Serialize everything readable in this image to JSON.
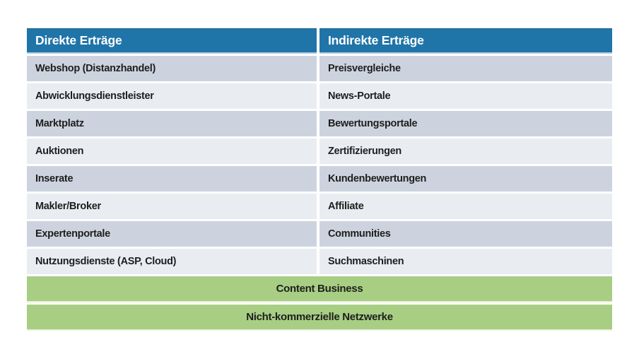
{
  "table": {
    "headers": [
      "Direkte Erträge",
      "Indirekte Erträge"
    ],
    "rows": [
      [
        "Webshop (Distanzhandel)",
        "Preisvergleiche"
      ],
      [
        "Abwicklungsdienstleister",
        "News-Portale"
      ],
      [
        "Marktplatz",
        "Bewertungsportale"
      ],
      [
        "Auktionen",
        "Zertifizierungen"
      ],
      [
        "Inserate",
        "Kundenbewertungen"
      ],
      [
        "Makler/Broker",
        "Affiliate"
      ],
      [
        "Expertenportale",
        "Communities"
      ],
      [
        "Nutzungsdienste (ASP, Cloud)",
        "Suchmaschinen"
      ]
    ],
    "span_rows": [
      "Content Business",
      "Nicht-kommerzielle Netzwerke"
    ]
  },
  "colors": {
    "header_bg": "#1F74A8",
    "header_text": "#FFFFFF",
    "header_border": "#19618D",
    "header_underline": "#AECBDD",
    "row_dark": "#CDD3DE",
    "row_light": "#E9EDF2",
    "green_bg": "#A7CE83",
    "green_underline": "#E8F1DC",
    "body_text": "#1E1E1E"
  }
}
